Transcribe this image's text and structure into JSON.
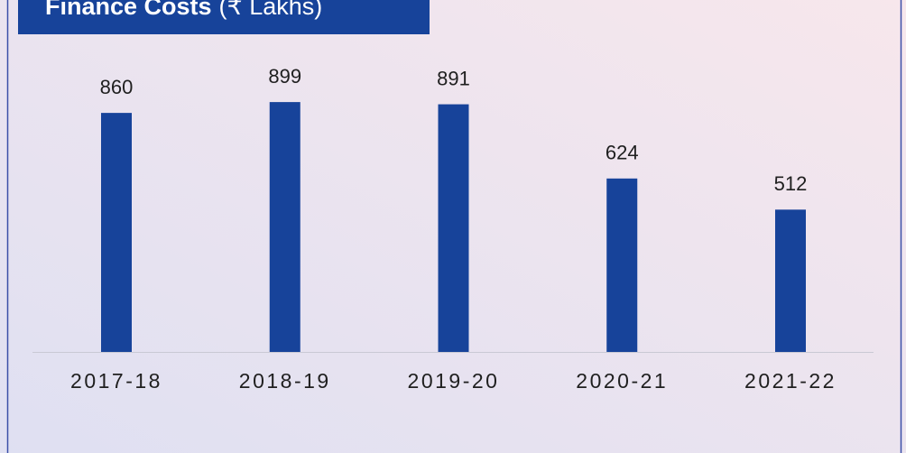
{
  "chart_data": {
    "type": "bar",
    "title": "Finance Costs",
    "unit": "(₹ Lakhs)",
    "categories": [
      "2017-18",
      "2018-19",
      "2019-20",
      "2020-21",
      "2021-22"
    ],
    "values": [
      860,
      899,
      891,
      624,
      512
    ],
    "color": "#17439a"
  }
}
